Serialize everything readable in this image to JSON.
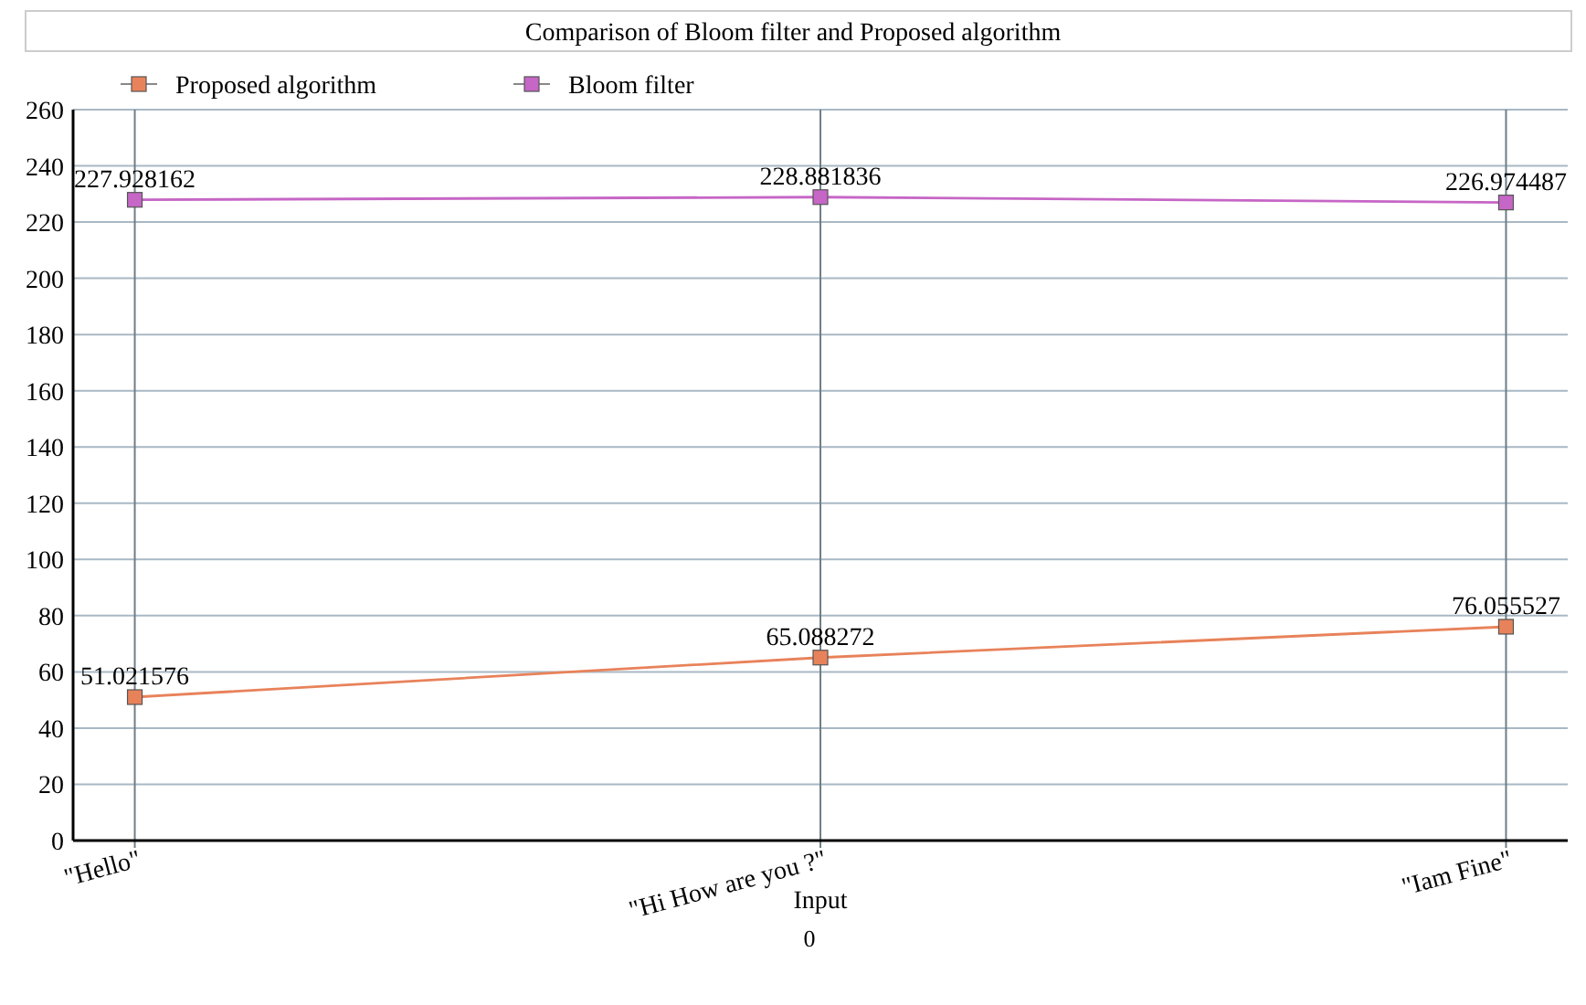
{
  "chart_data": {
    "type": "line",
    "title": "Comparison of Bloom filter and Proposed algorithm",
    "xlabel": "Input",
    "annotations": [
      "0"
    ],
    "categories": [
      "\"Hello\"",
      "\"Hi How are you ?\"",
      "\"Iam Fine\""
    ],
    "series": [
      {
        "name": "Proposed algorithm",
        "color": "#e8825a",
        "values": [
          51.021576,
          65.088272,
          76.055527
        ]
      },
      {
        "name": "Bloom filter",
        "color": "#c666c6",
        "values": [
          227.928162,
          228.881836,
          226.974487
        ]
      }
    ],
    "ylim": [
      0,
      260
    ],
    "yticks": [
      0,
      20,
      40,
      60,
      80,
      100,
      120,
      140,
      160,
      180,
      200,
      220,
      240,
      260
    ],
    "grid": true,
    "legend": "top left",
    "marker": "square",
    "data_labels": true
  }
}
